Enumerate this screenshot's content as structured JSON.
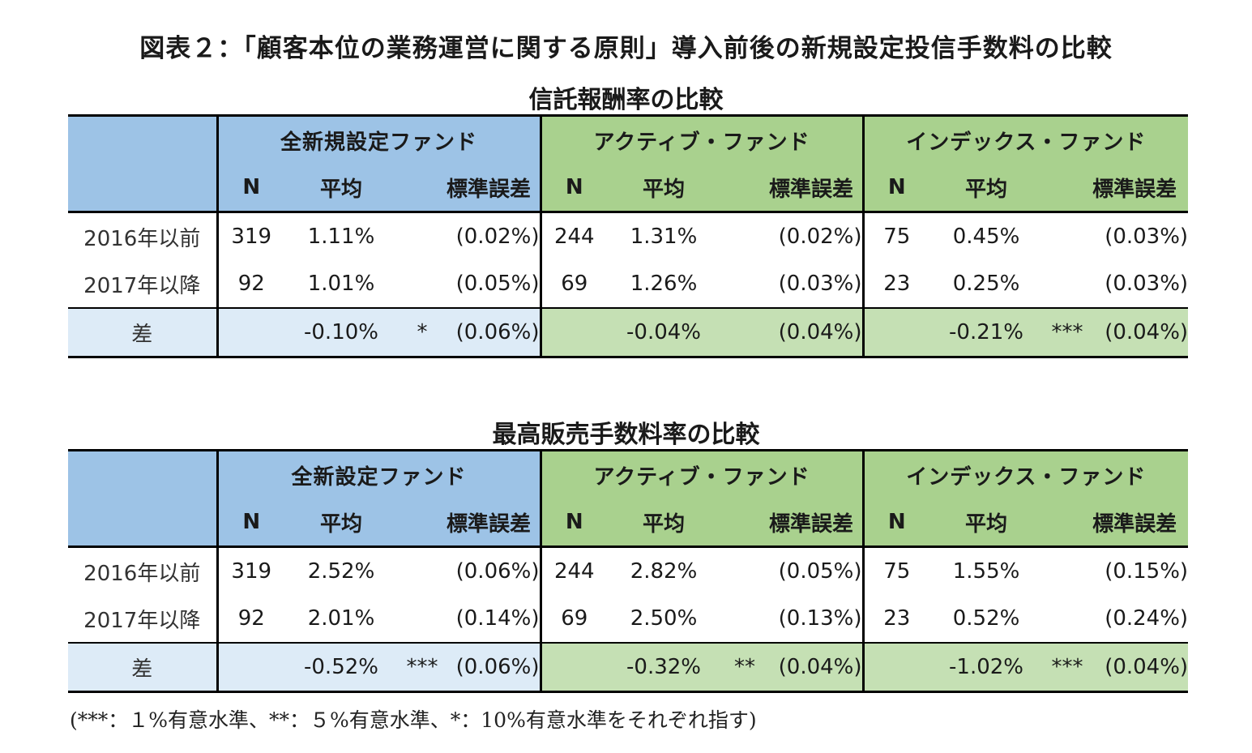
{
  "title": "図表２：「顧客本位の業務運営に関する原則」導入前後の新規設定投信手数料の比較",
  "tables": [
    {
      "title": "信託報酬率の比較",
      "groups": [
        "全新規設定ファンド",
        "アクティブ・ファンド",
        "インデックス・ファンド"
      ],
      "subheaders": {
        "n": "N",
        "avg": "平均",
        "se": "標準誤差"
      },
      "rows": [
        {
          "label": "2016年以前",
          "cells": [
            {
              "n": "319",
              "avg": "1.11%",
              "sig": "",
              "se": "(0.02%)"
            },
            {
              "n": "244",
              "avg": "1.31%",
              "sig": "",
              "se": "(0.02%)"
            },
            {
              "n": "75",
              "avg": "0.45%",
              "sig": "",
              "se": "(0.03%)"
            }
          ]
        },
        {
          "label": "2017年以降",
          "cells": [
            {
              "n": "92",
              "avg": "1.01%",
              "sig": "",
              "se": "(0.05%)"
            },
            {
              "n": "69",
              "avg": "1.26%",
              "sig": "",
              "se": "(0.03%)"
            },
            {
              "n": "23",
              "avg": "0.25%",
              "sig": "",
              "se": "(0.03%)"
            }
          ]
        },
        {
          "label": "差",
          "cells": [
            {
              "n": "",
              "avg": "-0.10%",
              "sig": "*",
              "se": "(0.06%)"
            },
            {
              "n": "",
              "avg": "-0.04%",
              "sig": "",
              "se": "(0.04%)"
            },
            {
              "n": "",
              "avg": "-0.21%",
              "sig": "***",
              "se": "(0.04%)"
            }
          ]
        }
      ]
    },
    {
      "title": "最高販売手数料率の比較",
      "groups": [
        "全新設定ファンド",
        "アクティブ・ファンド",
        "インデックス・ファンド"
      ],
      "subheaders": {
        "n": "N",
        "avg": "平均",
        "se": "標準誤差"
      },
      "rows": [
        {
          "label": "2016年以前",
          "cells": [
            {
              "n": "319",
              "avg": "2.52%",
              "sig": "",
              "se": "(0.06%)"
            },
            {
              "n": "244",
              "avg": "2.82%",
              "sig": "",
              "se": "(0.05%)"
            },
            {
              "n": "75",
              "avg": "1.55%",
              "sig": "",
              "se": "(0.15%)"
            }
          ]
        },
        {
          "label": "2017年以降",
          "cells": [
            {
              "n": "92",
              "avg": "2.01%",
              "sig": "",
              "se": "(0.14%)"
            },
            {
              "n": "69",
              "avg": "2.50%",
              "sig": "",
              "se": "(0.13%)"
            },
            {
              "n": "23",
              "avg": "0.52%",
              "sig": "",
              "se": "(0.24%)"
            }
          ]
        },
        {
          "label": "差",
          "cells": [
            {
              "n": "",
              "avg": "-0.52%",
              "sig": "***",
              "se": "(0.06%)"
            },
            {
              "n": "",
              "avg": "-0.32%",
              "sig": "**",
              "se": "(0.04%)"
            },
            {
              "n": "",
              "avg": "-1.02%",
              "sig": "***",
              "se": "(0.04%)"
            }
          ]
        }
      ]
    }
  ],
  "footnote": "(***：１%有意水準、**：５%有意水準、*：10%有意水準をそれぞれ指す)"
}
